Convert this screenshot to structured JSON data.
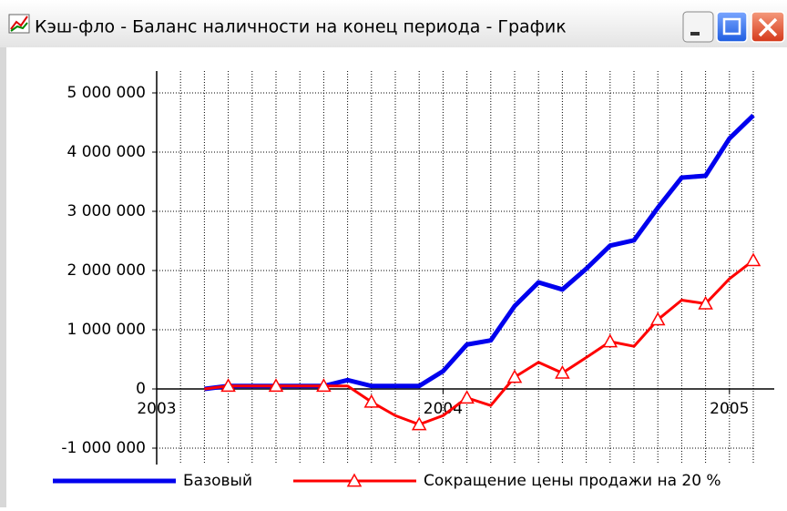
{
  "window": {
    "title": "Кэш-фло - Баланс наличности на конец периода - График"
  },
  "chart_data": {
    "type": "line",
    "x": [
      2,
      3,
      4,
      5,
      6,
      7,
      8,
      9,
      10,
      11,
      12,
      13,
      14,
      15,
      16,
      17,
      18,
      19,
      20,
      21,
      22,
      23,
      24,
      25
    ],
    "series": [
      {
        "name": "Базовый",
        "color": "#0000ee",
        "width": 5,
        "values": [
          0,
          50000,
          50000,
          50000,
          50000,
          50000,
          150000,
          50000,
          50000,
          50000,
          300000,
          750000,
          820000,
          1400000,
          1800000,
          1680000,
          2030000,
          2420000,
          2510000,
          3060000,
          3570000,
          3600000,
          4230000,
          4620000
        ]
      },
      {
        "name": "Сокращение  цены продажи на 20 %",
        "color": "#ff0000",
        "width": 3,
        "marker": "triangle",
        "marker_every": 2,
        "values": [
          0,
          50000,
          50000,
          50000,
          50000,
          50000,
          50000,
          -220000,
          -450000,
          -600000,
          -450000,
          -150000,
          -280000,
          200000,
          450000,
          270000,
          530000,
          800000,
          720000,
          1170000,
          1500000,
          1440000,
          1860000,
          2170000
        ]
      }
    ],
    "xlim": [
      0,
      25
    ],
    "xticks": [
      {
        "value": 0,
        "label": "2003"
      },
      {
        "value": 12,
        "label": "2004"
      },
      {
        "value": 24,
        "label": "2005"
      }
    ],
    "xgrid": [
      0,
      1,
      2,
      3,
      4,
      5,
      6,
      7,
      8,
      9,
      10,
      11,
      12,
      13,
      14,
      15,
      16,
      17,
      18,
      19,
      20,
      21,
      22,
      23,
      24,
      25
    ],
    "ylim": [
      -1000000,
      5000000
    ],
    "yticks": [
      {
        "value": -1000000,
        "label": "-1 000 000"
      },
      {
        "value": 0,
        "label": "0"
      },
      {
        "value": 1000000,
        "label": "1 000 000"
      },
      {
        "value": 2000000,
        "label": "2 000 000"
      },
      {
        "value": 3000000,
        "label": "3 000 000"
      },
      {
        "value": 4000000,
        "label": "4 000 000"
      },
      {
        "value": 5000000,
        "label": "5 000 000"
      }
    ],
    "grid": true,
    "legend": "bottom"
  }
}
